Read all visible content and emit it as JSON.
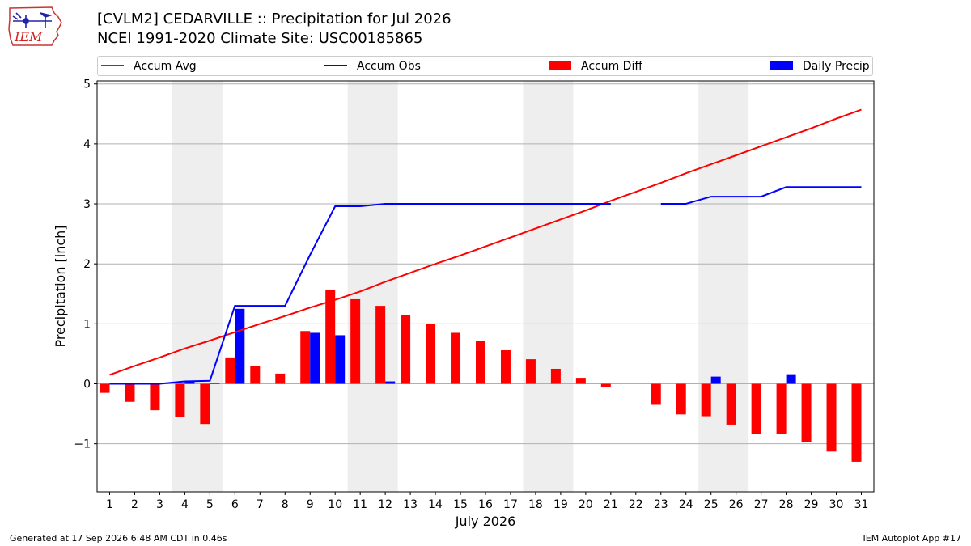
{
  "header": {
    "title_line1": "[CVLM2] CEDARVILLE :: Precipitation for Jul 2026",
    "title_line2": "NCEI 1991-2020 Climate Site: USC00185865",
    "logo_text": "IEM"
  },
  "legend": {
    "items": [
      {
        "label": "Accum Avg",
        "kind": "line",
        "color": "#ff0000"
      },
      {
        "label": "Accum Obs",
        "kind": "line",
        "color": "#0000ff"
      },
      {
        "label": "Accum Diff",
        "kind": "bar",
        "color": "#ff0000"
      },
      {
        "label": "Daily Precip",
        "kind": "bar",
        "color": "#0000ff"
      }
    ],
    "placement": "top"
  },
  "footer": {
    "left": "Generated at 17 Sep 2026 6:48 AM CDT in 0.46s",
    "right": "IEM Autoplot App #17"
  },
  "chart_data": {
    "type": "bar",
    "xlabel": "July 2026",
    "ylabel": "Precipitation [inch]",
    "categories": [
      "1",
      "2",
      "3",
      "4",
      "5",
      "6",
      "7",
      "8",
      "9",
      "10",
      "11",
      "12",
      "13",
      "14",
      "15",
      "16",
      "17",
      "18",
      "19",
      "20",
      "21",
      "22",
      "23",
      "24",
      "25",
      "26",
      "27",
      "28",
      "29",
      "30",
      "31"
    ],
    "ylim": [
      -1.8,
      5.05
    ],
    "yticks": [
      -1,
      0,
      1,
      2,
      3,
      4,
      5
    ],
    "ytick_labels": [
      "−1",
      "0",
      "1",
      "2",
      "3",
      "4",
      "5"
    ],
    "grid": true,
    "weekend_shading": [
      [
        4,
        5
      ],
      [
        11,
        12
      ],
      [
        18,
        19
      ],
      [
        25,
        26
      ]
    ],
    "weekend_color": "#eeeeee",
    "series": [
      {
        "name": "Accum Avg",
        "kind": "line",
        "color": "#ff0000",
        "values": [
          0.15,
          0.3,
          0.44,
          0.59,
          0.72,
          0.86,
          1.0,
          1.13,
          1.27,
          1.4,
          1.54,
          1.7,
          1.85,
          2.0,
          2.14,
          2.29,
          2.44,
          2.59,
          2.74,
          2.89,
          3.05,
          3.2,
          3.35,
          3.51,
          3.66,
          3.81,
          3.96,
          4.11,
          4.26,
          4.42,
          4.57
        ]
      },
      {
        "name": "Accum Obs",
        "kind": "line",
        "color": "#0000ff",
        "values": [
          0.0,
          0.0,
          0.0,
          0.04,
          0.05,
          1.3,
          1.3,
          1.3,
          2.15,
          2.96,
          2.96,
          3.0,
          3.0,
          3.0,
          3.0,
          3.0,
          3.0,
          3.0,
          3.0,
          3.0,
          3.0,
          null,
          3.0,
          3.0,
          3.12,
          3.12,
          3.12,
          3.28,
          3.28,
          3.28,
          3.28
        ]
      },
      {
        "name": "Accum Diff",
        "kind": "bar",
        "color": "#ff0000",
        "values": [
          -0.15,
          -0.3,
          -0.44,
          -0.55,
          -0.67,
          0.44,
          0.3,
          0.17,
          0.88,
          1.56,
          1.41,
          1.3,
          1.15,
          1.0,
          0.85,
          0.71,
          0.56,
          0.41,
          0.25,
          0.1,
          -0.05,
          null,
          -0.35,
          -0.51,
          -0.54,
          -0.68,
          -0.83,
          -0.83,
          -0.97,
          -1.13,
          -1.3
        ]
      },
      {
        "name": "Daily Precip",
        "kind": "bar",
        "color": "#0000ff",
        "values": [
          0,
          0,
          0,
          0.04,
          0.01,
          1.25,
          0,
          0,
          0.85,
          0.81,
          0,
          0.04,
          0,
          0,
          0,
          0,
          0,
          0,
          0,
          0,
          0,
          0,
          0,
          0,
          0.12,
          0,
          0,
          0.16,
          0,
          0,
          0
        ]
      }
    ]
  }
}
